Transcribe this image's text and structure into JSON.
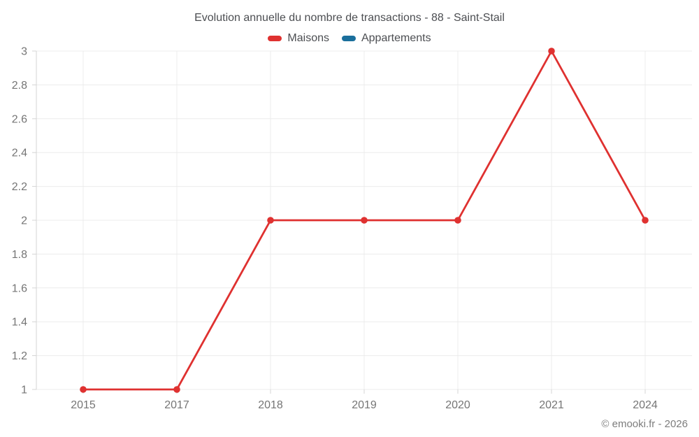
{
  "chart_data": {
    "type": "line",
    "title": "Evolution annuelle du nombre de transactions - 88 - Saint-Stail",
    "xlabel": "",
    "ylabel": "",
    "categories": [
      "2015",
      "2017",
      "2018",
      "2019",
      "2020",
      "2021",
      "2024"
    ],
    "series": [
      {
        "name": "Maisons",
        "color": "#df3130",
        "values": [
          1,
          1,
          2,
          2,
          2,
          3,
          2
        ]
      },
      {
        "name": "Appartements",
        "color": "#1a6f9c",
        "values": []
      }
    ],
    "ylim": [
      1,
      3
    ],
    "ytick_step": 0.2,
    "ytick_labels": [
      "1",
      "1.2",
      "1.4",
      "1.6",
      "1.8",
      "2",
      "2.2",
      "2.4",
      "2.6",
      "2.8",
      "3"
    ],
    "grid": true,
    "legend_position": "top",
    "footer": "© emooki.fr - 2026",
    "colors": {
      "grid": "#ececec",
      "axis": "#d4d4d4",
      "tick_label": "#757575",
      "title": "#4c4e52",
      "footer": "#7d7d7d",
      "background": "#ffffff"
    }
  }
}
